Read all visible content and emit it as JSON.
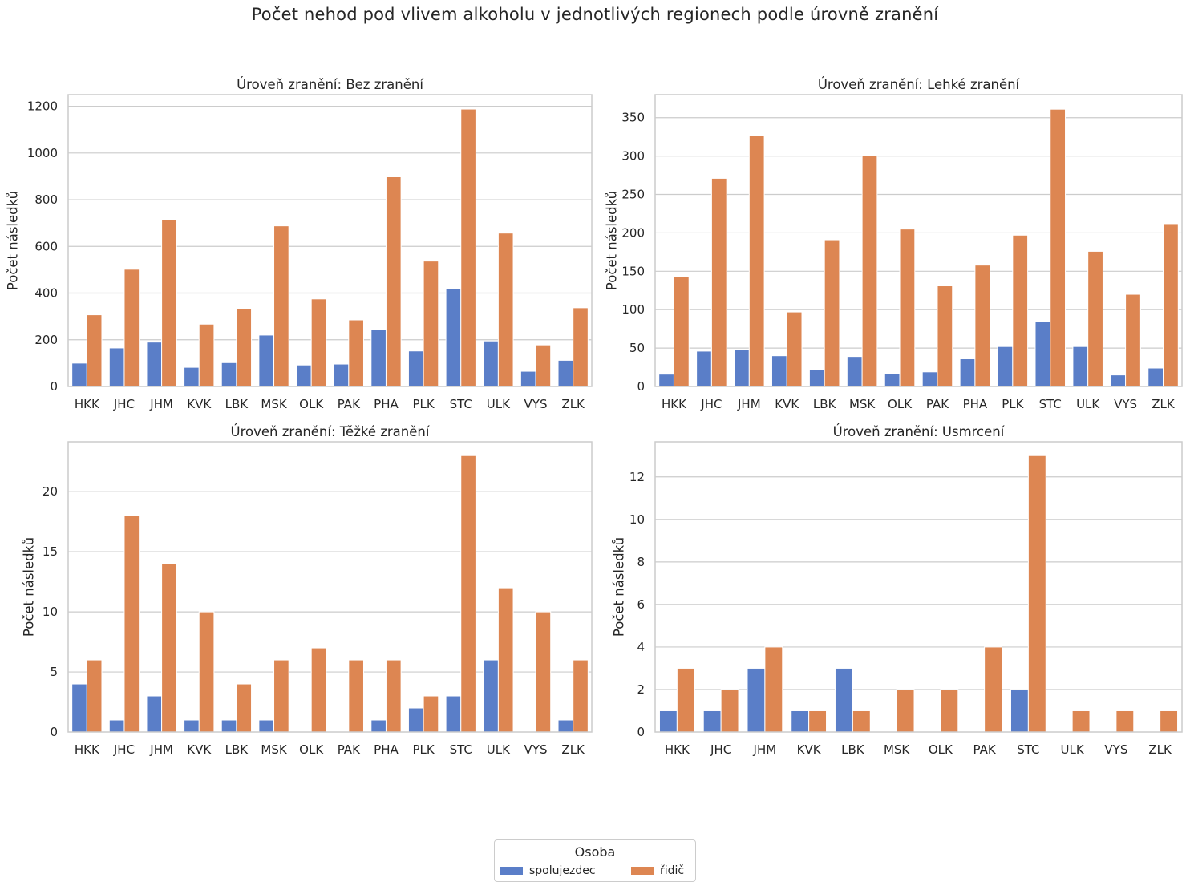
{
  "title": "Počet nehod pod vlivem alkoholu v jednotlivých regionech podle úrovně zranění",
  "legend": {
    "title": "Osoba",
    "items": [
      {
        "label": "spolujezdec",
        "color": "#5a7ec8"
      },
      {
        "label": "řidič",
        "color": "#dd8652"
      }
    ]
  },
  "chart_data": [
    {
      "type": "bar",
      "title": "Úroveň zranění: Bez zranění",
      "xlabel": "",
      "ylabel": "Počet následků",
      "ylim": [
        0,
        1250
      ],
      "yticks": [
        0,
        200,
        400,
        600,
        800,
        1000,
        1200
      ],
      "grid": true,
      "categories": [
        "HKK",
        "JHC",
        "JHM",
        "KVK",
        "LBK",
        "MSK",
        "OLK",
        "PAK",
        "PHA",
        "PLK",
        "STC",
        "ULK",
        "VYS",
        "ZLK"
      ],
      "series": [
        {
          "name": "spolujezdec",
          "values": [
            100,
            165,
            190,
            82,
            102,
            220,
            92,
            96,
            245,
            152,
            418,
            195,
            65,
            112
          ]
        },
        {
          "name": "řidič",
          "values": [
            307,
            502,
            713,
            267,
            333,
            688,
            375,
            285,
            898,
            537,
            1188,
            657,
            178,
            337
          ]
        }
      ]
    },
    {
      "type": "bar",
      "title": "Úroveň zranění: Lehké zranění",
      "xlabel": "",
      "ylabel": "Počet následků",
      "ylim": [
        0,
        380
      ],
      "yticks": [
        0,
        50,
        100,
        150,
        200,
        250,
        300,
        350
      ],
      "grid": true,
      "categories": [
        "HKK",
        "JHC",
        "JHM",
        "KVK",
        "LBK",
        "MSK",
        "OLK",
        "PAK",
        "PHA",
        "PLK",
        "STC",
        "ULK",
        "VYS",
        "ZLK"
      ],
      "series": [
        {
          "name": "spolujezdec",
          "values": [
            16,
            46,
            48,
            40,
            22,
            39,
            17,
            19,
            36,
            52,
            85,
            52,
            15,
            24
          ]
        },
        {
          "name": "řidič",
          "values": [
            143,
            271,
            327,
            97,
            191,
            301,
            205,
            131,
            158,
            197,
            361,
            176,
            120,
            212
          ]
        }
      ]
    },
    {
      "type": "bar",
      "title": "Úroveň zranění: Těžké zranění",
      "xlabel": "",
      "ylabel": "Počet následků",
      "ylim": [
        0,
        24.15
      ],
      "yticks": [
        0,
        5,
        10,
        15,
        20
      ],
      "grid": true,
      "categories": [
        "HKK",
        "JHC",
        "JHM",
        "KVK",
        "LBK",
        "MSK",
        "OLK",
        "PAK",
        "PHA",
        "PLK",
        "STC",
        "ULK",
        "VYS",
        "ZLK"
      ],
      "series": [
        {
          "name": "spolujezdec",
          "values": [
            4,
            1,
            3,
            1,
            1,
            1,
            0,
            0,
            1,
            2,
            3,
            6,
            0,
            1
          ]
        },
        {
          "name": "řidič",
          "values": [
            6,
            18,
            14,
            10,
            4,
            6,
            7,
            6,
            6,
            3,
            23,
            12,
            10,
            6
          ]
        }
      ]
    },
    {
      "type": "bar",
      "title": "Úroveň zranění: Usmrcení",
      "xlabel": "",
      "ylabel": "Počet následků",
      "ylim": [
        0,
        13.65
      ],
      "yticks": [
        0,
        2,
        4,
        6,
        8,
        10,
        12
      ],
      "grid": true,
      "categories": [
        "HKK",
        "JHC",
        "JHM",
        "KVK",
        "LBK",
        "MSK",
        "OLK",
        "PAK",
        "STC",
        "ULK",
        "VYS",
        "ZLK"
      ],
      "series": [
        {
          "name": "spolujezdec",
          "values": [
            1,
            1,
            3,
            1,
            3,
            0,
            0,
            0,
            2,
            0,
            0,
            0
          ]
        },
        {
          "name": "řidič",
          "values": [
            3,
            2,
            4,
            1,
            1,
            2,
            2,
            4,
            13,
            1,
            1,
            1
          ]
        }
      ]
    }
  ]
}
